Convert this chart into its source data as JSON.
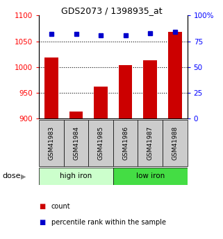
{
  "title": "GDS2073 / 1398935_at",
  "samples": [
    "GSM41983",
    "GSM41984",
    "GSM41985",
    "GSM41986",
    "GSM41987",
    "GSM41988"
  ],
  "counts": [
    1018,
    913,
    962,
    1003,
    1013,
    1068
  ],
  "percentile_ranks": [
    82,
    82,
    81,
    81,
    83,
    84
  ],
  "ylim_left": [
    900,
    1100
  ],
  "ylim_right": [
    0,
    100
  ],
  "yticks_left": [
    900,
    950,
    1000,
    1050,
    1100
  ],
  "yticks_right": [
    0,
    25,
    50,
    75,
    100
  ],
  "ytick_labels_right": [
    "0",
    "25",
    "50",
    "75",
    "100%"
  ],
  "dotted_lines": [
    950,
    1000,
    1050
  ],
  "bar_color": "#cc0000",
  "dot_color": "#0000cc",
  "group1_label": "high iron",
  "group2_label": "low iron",
  "group1_bg": "#ccffcc",
  "group2_bg": "#44dd44",
  "sample_box_bg": "#cccccc",
  "dose_label": "dose",
  "legend_count": "count",
  "legend_percentile": "percentile rank within the sample",
  "bar_width": 0.55,
  "base_value": 900,
  "pct_scale_min": 900,
  "pct_scale_max": 1100
}
